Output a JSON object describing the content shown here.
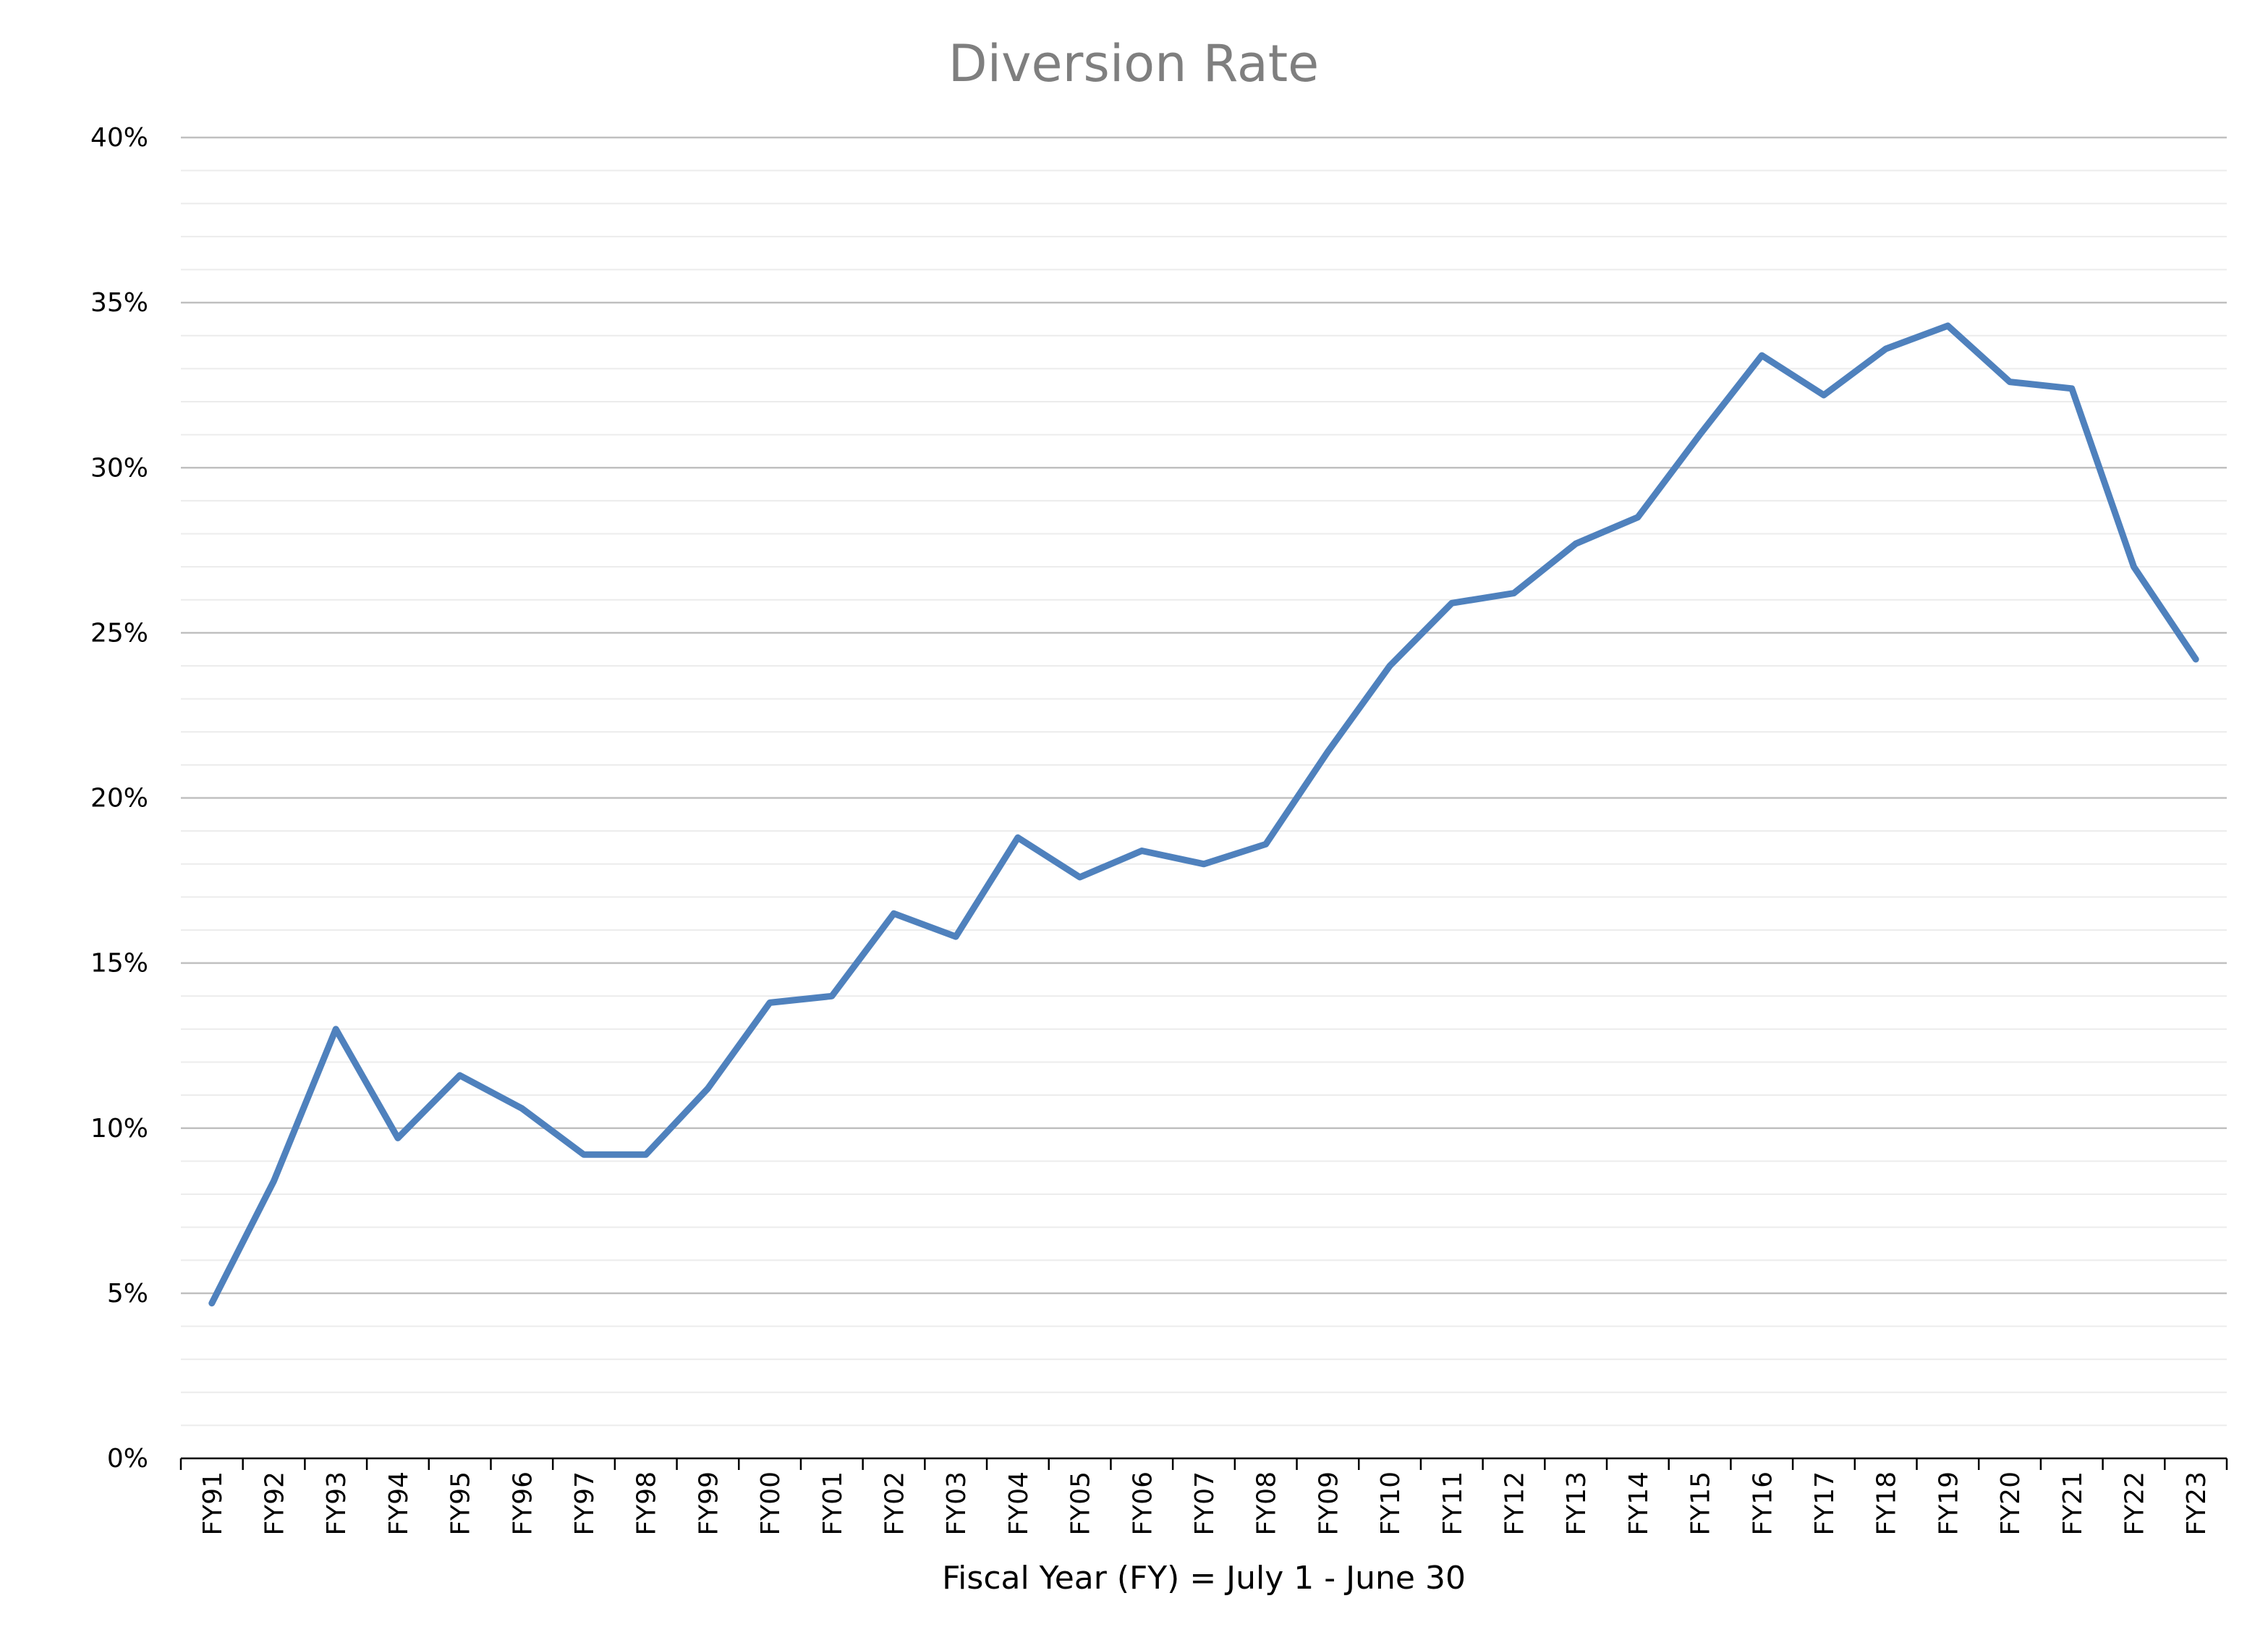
{
  "chart_data": {
    "type": "line",
    "title": "Diversion Rate",
    "xlabel": "Fiscal Year (FY) = July 1 - June 30",
    "ylabel": "",
    "ylim": [
      0,
      40
    ],
    "yticks": [
      "0%",
      "5%",
      "10%",
      "15%",
      "20%",
      "25%",
      "30%",
      "35%",
      "40%"
    ],
    "grid": true,
    "minor_grid": true,
    "legend": "none",
    "line_color": "#4f81bd",
    "categories": [
      "FY91",
      "FY92",
      "FY93",
      "FY94",
      "FY95",
      "FY96",
      "FY97",
      "FY98",
      "FY99",
      "FY00",
      "FY01",
      "FY02",
      "FY03",
      "FY04",
      "FY05",
      "FY06",
      "FY07",
      "FY08",
      "FY09",
      "FY10",
      "FY11",
      "FY12",
      "FY13",
      "FY14",
      "FY15",
      "FY16",
      "FY17",
      "FY18",
      "FY19",
      "FY20",
      "FY21",
      "FY22",
      "FY23"
    ],
    "values": [
      4.7,
      8.4,
      13.0,
      9.7,
      11.6,
      10.6,
      9.2,
      9.2,
      11.2,
      13.8,
      14.0,
      16.5,
      15.8,
      18.8,
      17.6,
      18.4,
      18.0,
      18.6,
      21.4,
      24.0,
      25.9,
      26.2,
      27.7,
      28.5,
      31.0,
      33.4,
      32.2,
      33.6,
      34.3,
      32.6,
      32.4,
      27.0,
      24.2
    ]
  }
}
